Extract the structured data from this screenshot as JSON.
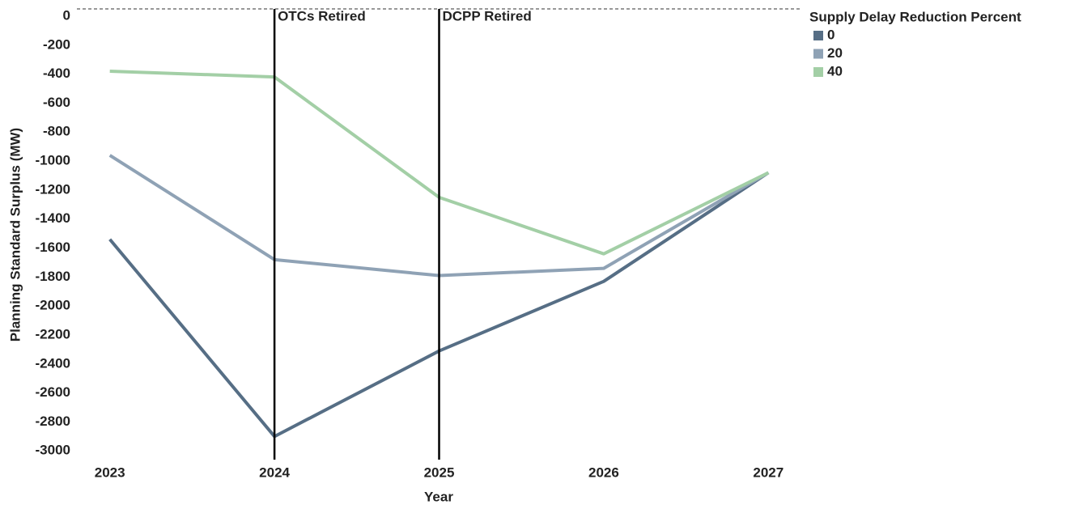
{
  "chart_data": {
    "type": "line",
    "x_label": "Year",
    "y_label": "Planning Standard Surplus (MW)",
    "x": [
      2023,
      2024,
      2025,
      2026,
      2027
    ],
    "xlim": [
      2022.8,
      2027.2
    ],
    "xticks": [
      2023,
      2024,
      2025,
      2026,
      2027
    ],
    "ylim": [
      -3060,
      50
    ],
    "yticks": [
      0,
      -200,
      -400,
      -600,
      -800,
      -1000,
      -1200,
      -1400,
      -1600,
      -1800,
      -2000,
      -2200,
      -2400,
      -2600,
      -2800,
      -3000
    ],
    "legend_title": "Supply Delay Reduction Percent",
    "legend_position": "right",
    "series": [
      {
        "name": "0",
        "color": "#566e85",
        "values": [
          -1540,
          -2900,
          -2310,
          -1830,
          -1080
        ]
      },
      {
        "name": "20",
        "color": "#8fa2b5",
        "values": [
          -960,
          -1680,
          -1790,
          -1740,
          -1080
        ]
      },
      {
        "name": "40",
        "color": "#a3cfa6",
        "values": [
          -380,
          -420,
          -1250,
          -1640,
          -1080
        ]
      }
    ],
    "annotations": [
      {
        "x": 2024,
        "text": "OTCs Retired"
      },
      {
        "x": 2025,
        "text": "DCPP Retired"
      }
    ]
  }
}
